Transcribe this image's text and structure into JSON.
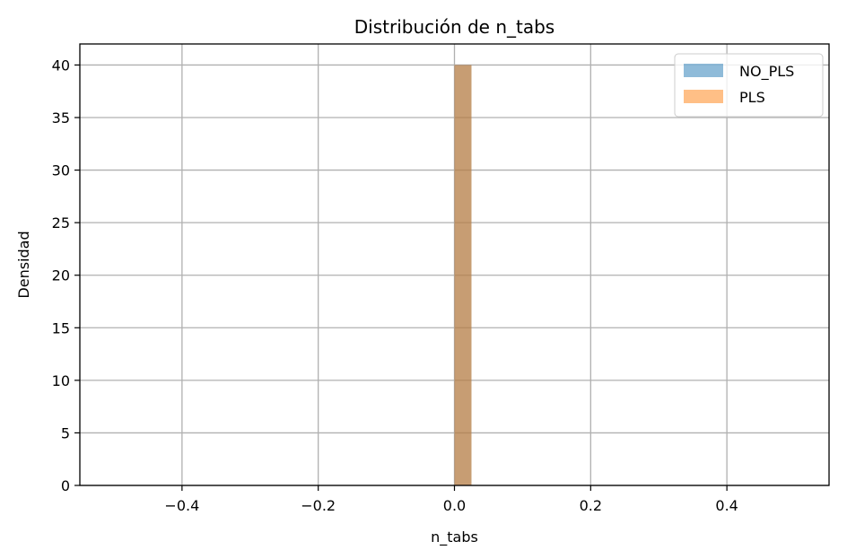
{
  "chart_data": {
    "type": "histogram",
    "title": "Distribución de n_tabs",
    "xlabel": "n_tabs",
    "ylabel": "Densidad",
    "xlim": [
      -0.55,
      0.55
    ],
    "ylim": [
      0,
      42
    ],
    "xticks": [
      -0.4,
      -0.2,
      0.0,
      0.2,
      0.4
    ],
    "xtick_labels": [
      "−0.4",
      "−0.2",
      "0.0",
      "0.2",
      "0.4"
    ],
    "yticks": [
      0,
      5,
      10,
      15,
      20,
      25,
      30,
      35,
      40
    ],
    "ytick_labels": [
      "0",
      "5",
      "10",
      "15",
      "20",
      "25",
      "30",
      "35",
      "40"
    ],
    "grid": true,
    "legend_position": "top-right",
    "series": [
      {
        "name": "NO_PLS",
        "color": "#1f77b4",
        "alpha": 0.5,
        "bins": [
          {
            "x0": 0.0,
            "x1": 0.025,
            "value": 40
          }
        ]
      },
      {
        "name": "PLS",
        "color": "#ff7f0e",
        "alpha": 0.5,
        "bins": [
          {
            "x0": 0.0,
            "x1": 0.025,
            "value": 40
          }
        ]
      }
    ]
  }
}
